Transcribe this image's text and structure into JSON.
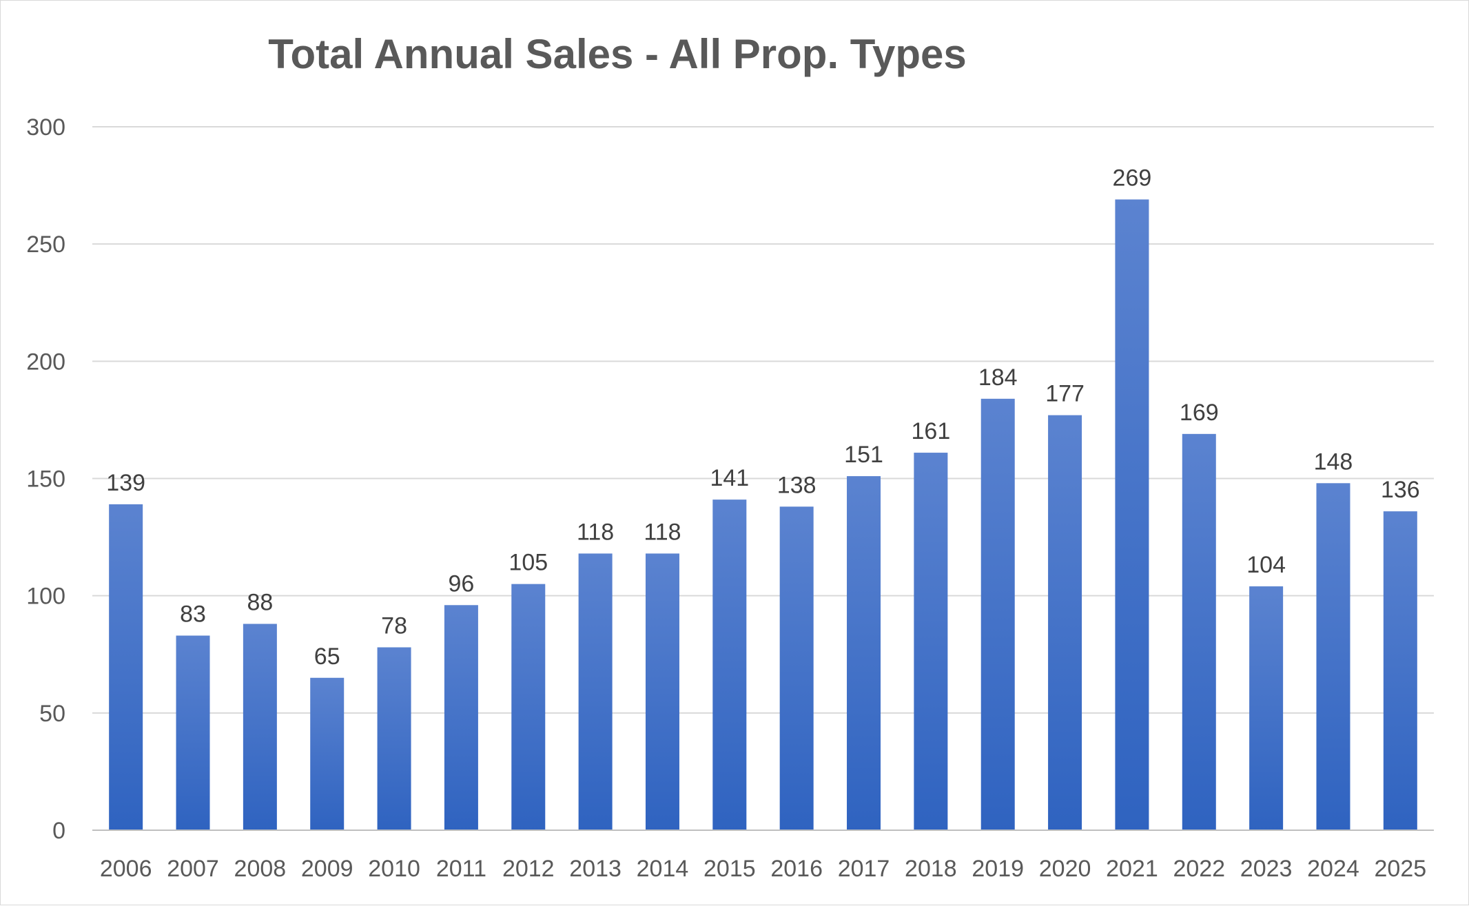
{
  "chart_data": {
    "type": "bar",
    "title": "Total Annual Sales - All Prop. Types",
    "xlabel": "",
    "ylabel": "",
    "ylim": [
      0,
      300
    ],
    "yticks": [
      0,
      50,
      100,
      150,
      200,
      250,
      300
    ],
    "grid": true,
    "legend": "none",
    "categories": [
      "2006",
      "2007",
      "2008",
      "2009",
      "2010",
      "2011",
      "2012",
      "2013",
      "2014",
      "2015",
      "2016",
      "2017",
      "2018",
      "2019",
      "2020",
      "2021",
      "2022",
      "2023",
      "2024",
      "2025"
    ],
    "series": [
      {
        "name": "Total Annual Sales",
        "values": [
          139,
          83,
          88,
          65,
          78,
          96,
          105,
          118,
          118,
          141,
          138,
          151,
          161,
          184,
          177,
          269,
          169,
          104,
          148,
          136
        ]
      }
    ],
    "colors": {
      "bar_top": "#5b83d0",
      "bar_bottom": "#2f63c0",
      "title": "#595959",
      "grid": "#d9d9d9"
    }
  }
}
